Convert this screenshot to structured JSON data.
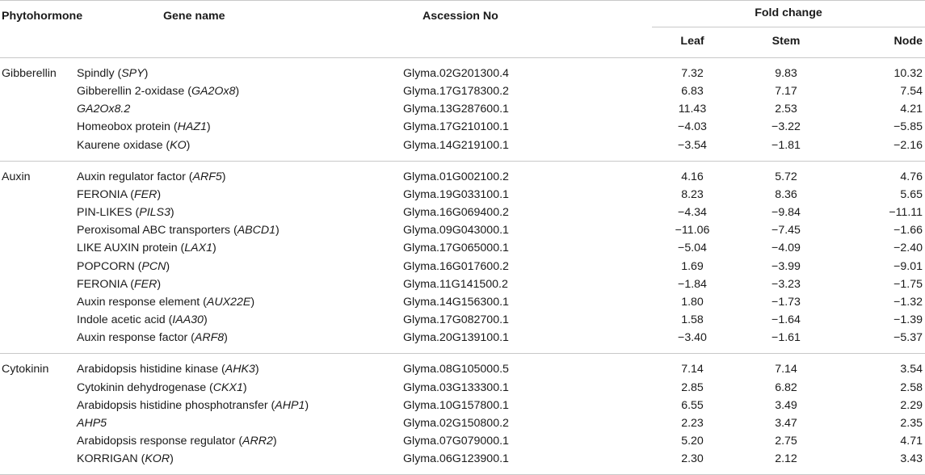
{
  "headers": {
    "phytohormone": "Phytohormone",
    "gene_name": "Gene name",
    "accession": "Ascession No",
    "fold_change": "Fold change",
    "leaf": "Leaf",
    "stem": "Stem",
    "node": "Node"
  },
  "groups": [
    {
      "name": "Gibberellin",
      "rows": [
        {
          "pre": "Spindly (",
          "it": "SPY",
          "post": ")",
          "acc": "Glyma.02G201300.4",
          "leaf": "7.32",
          "stem": "9.83",
          "node": "10.32"
        },
        {
          "pre": "Gibberellin 2-oxidase (",
          "it": "GA2Ox8",
          "post": ")",
          "acc": "Glyma.17G178300.2",
          "leaf": "6.83",
          "stem": "7.17",
          "node": "7.54"
        },
        {
          "pre": "",
          "it": "GA2Ox8.2",
          "post": "",
          "acc": "Glyma.13G287600.1",
          "leaf": "11.43",
          "stem": "2.53",
          "node": "4.21"
        },
        {
          "pre": "Homeobox protein (",
          "it": "HAZ1",
          "post": ")",
          "acc": "Glyma.17G210100.1",
          "leaf": "−4.03",
          "stem": "−3.22",
          "node": "−5.85"
        },
        {
          "pre": "Kaurene oxidase (",
          "it": "KO",
          "post": ")",
          "acc": "Glyma.14G219100.1",
          "leaf": "−3.54",
          "stem": "−1.81",
          "node": "−2.16"
        }
      ]
    },
    {
      "name": "Auxin",
      "rows": [
        {
          "pre": "Auxin regulator factor (",
          "it": "ARF5",
          "post": ")",
          "acc": "Glyma.01G002100.2",
          "leaf": "4.16",
          "stem": "5.72",
          "node": "4.76"
        },
        {
          "pre": "FERONIA (",
          "it": "FER",
          "post": ")",
          "acc": "Glyma.19G033100.1",
          "leaf": "8.23",
          "stem": "8.36",
          "node": "5.65"
        },
        {
          "pre": "PIN-LIKES (",
          "it": "PILS3",
          "post": ")",
          "acc": "Glyma.16G069400.2",
          "leaf": "−4.34",
          "stem": "−9.84",
          "node": "−11.11"
        },
        {
          "pre": "Peroxisomal ABC transporters (",
          "it": "ABCD1",
          "post": ")",
          "acc": "Glyma.09G043000.1",
          "leaf": "−11.06",
          "stem": "−7.45",
          "node": "−1.66"
        },
        {
          "pre": "LIKE AUXIN protein (",
          "it": "LAX1",
          "post": ")",
          "acc": "Glyma.17G065000.1",
          "leaf": "−5.04",
          "stem": "−4.09",
          "node": "−2.40"
        },
        {
          "pre": "POPCORN (",
          "it": "PCN",
          "post": ")",
          "acc": "Glyma.16G017600.2",
          "leaf": "1.69",
          "stem": "−3.99",
          "node": "−9.01"
        },
        {
          "pre": "FERONIA (",
          "it": "FER",
          "post": ")",
          "acc": "Glyma.11G141500.2",
          "leaf": "−1.84",
          "stem": "−3.23",
          "node": "−1.75"
        },
        {
          "pre": "Auxin response element (",
          "it": "AUX22E",
          "post": ")",
          "acc": "Glyma.14G156300.1",
          "leaf": "1.80",
          "stem": "−1.73",
          "node": "−1.32"
        },
        {
          "pre": "Indole acetic acid (",
          "it": "IAA30",
          "post": ")",
          "acc": "Glyma.17G082700.1",
          "leaf": "1.58",
          "stem": "−1.64",
          "node": "−1.39"
        },
        {
          "pre": "Auxin response factor (",
          "it": "ARF8",
          "post": ")",
          "acc": "Glyma.20G139100.1",
          "leaf": "−3.40",
          "stem": "−1.61",
          "node": "−5.37"
        }
      ]
    },
    {
      "name": "Cytokinin",
      "rows": [
        {
          "pre": "Arabidopsis histidine kinase (",
          "it": "AHK3",
          "post": ")",
          "acc": "Glyma.08G105000.5",
          "leaf": "7.14",
          "stem": "7.14",
          "node": "3.54"
        },
        {
          "pre": "Cytokinin dehydrogenase (",
          "it": "CKX1",
          "post": ")",
          "acc": "Glyma.03G133300.1",
          "leaf": "2.85",
          "stem": "6.82",
          "node": "2.58"
        },
        {
          "pre": "Arabidopsis histidine phosphotransfer (",
          "it": "AHP1",
          "post": ")",
          "acc": "Glyma.10G157800.1",
          "leaf": "6.55",
          "stem": "3.49",
          "node": "2.29"
        },
        {
          "pre": "",
          "it": "AHP5",
          "post": "",
          "acc": "Glyma.02G150800.2",
          "leaf": "2.23",
          "stem": "3.47",
          "node": "2.35"
        },
        {
          "pre": "Arabidopsis response regulator (",
          "it": "ARR2",
          "post": ")",
          "acc": "Glyma.07G079000.1",
          "leaf": "5.20",
          "stem": "2.75",
          "node": "4.71"
        },
        {
          "pre": "KORRIGAN (",
          "it": "KOR",
          "post": ")",
          "acc": "Glyma.06G123900.1",
          "leaf": "2.30",
          "stem": "2.12",
          "node": "3.43"
        }
      ]
    }
  ]
}
